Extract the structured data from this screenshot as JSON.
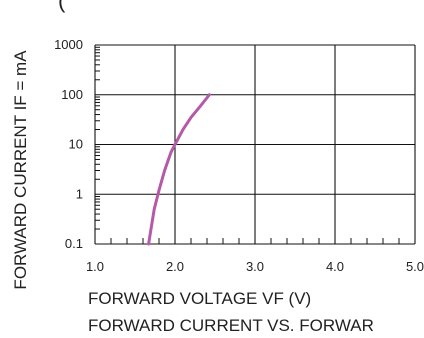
{
  "chart_data": {
    "type": "line",
    "title": "FORWARD CURRENT VS. FORWAR",
    "xlabel": "FORWARD VOLTAGE VF (V)",
    "ylabel": "FORWARD CURRENT IF = mA",
    "x_scale": "linear",
    "y_scale": "log",
    "xlim": [
      1.0,
      5.0
    ],
    "ylim": [
      0.1,
      1000
    ],
    "x_ticks": [
      "1.0",
      "2.0",
      "3.0",
      "4.0",
      "5.0"
    ],
    "y_ticks": [
      "0.1",
      "1",
      "10",
      "100",
      "1000"
    ],
    "grid": true,
    "series": [
      {
        "color": "#b55aa8",
        "x": [
          1.67,
          1.7,
          1.74,
          1.8,
          1.87,
          1.95,
          2.0,
          2.1,
          2.2,
          2.32,
          2.43
        ],
        "y": [
          0.1,
          0.2,
          0.5,
          1.2,
          3,
          7,
          10,
          20,
          35,
          60,
          100
        ]
      }
    ]
  }
}
